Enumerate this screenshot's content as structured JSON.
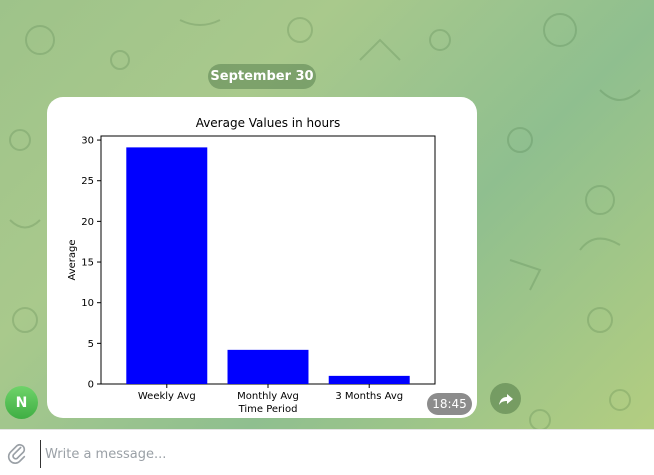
{
  "date_label": "September 30",
  "avatar_initial": "N",
  "time": "18:45",
  "composer": {
    "placeholder": "Write a message..."
  },
  "chart_data": {
    "type": "bar",
    "title": "Average Values in hours",
    "xlabel": "Time Period",
    "ylabel": "Average",
    "categories": [
      "Weekly Avg",
      "Monthly Avg",
      "3 Months Avg"
    ],
    "values": [
      29.1,
      4.2,
      1.0
    ],
    "ylim": [
      0,
      30.5
    ],
    "yticks": [
      0,
      5,
      10,
      15,
      20,
      25,
      30
    ],
    "bar_color": "#0000ff",
    "grid": false
  }
}
